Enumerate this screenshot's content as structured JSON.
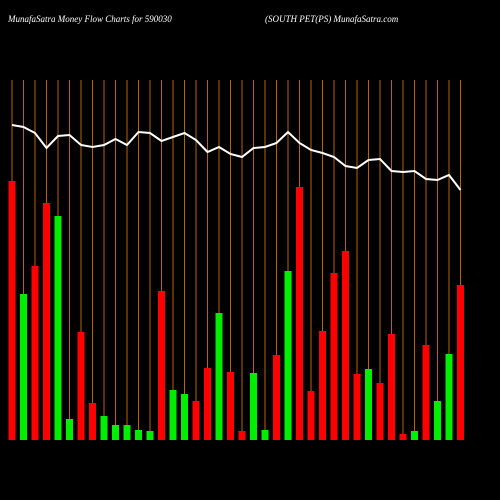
{
  "chart_data": {
    "type": "bar",
    "title": "MunafaSatra  Money Flow  Charts for 590030",
    "subtitle": "(SOUTH PET(PS) MunafaSatra.com",
    "categories": [
      null,
      null,
      null,
      null,
      null,
      null,
      null,
      null,
      null,
      null,
      null,
      null,
      null,
      null,
      null,
      null,
      null,
      null,
      null,
      null,
      null,
      null,
      null,
      null,
      null,
      null,
      null,
      null,
      null,
      null,
      null,
      null,
      null,
      null,
      null,
      null,
      null,
      null,
      null,
      null
    ],
    "values": [
      259,
      146,
      174,
      237,
      224,
      21,
      108,
      37,
      24,
      15,
      15,
      10,
      9,
      149,
      50,
      46,
      39,
      72,
      127,
      68,
      9,
      67,
      10,
      85,
      169,
      253,
      49,
      109,
      167,
      189,
      66,
      71,
      57,
      106,
      6,
      9,
      95,
      39,
      86,
      155
    ],
    "bar_colors": [
      "#ff0000",
      "#00ee00",
      "#ff0000",
      "#ff0000",
      "#00ee00",
      "#00ee00",
      "#ff0000",
      "#ff0000",
      "#00ee00",
      "#00ee00",
      "#00ee00",
      "#00ee00",
      "#00ee00",
      "#ff0000",
      "#00ee00",
      "#00ee00",
      "#ff0000",
      "#ff0000",
      "#00ee00",
      "#ff0000",
      "#ff0000",
      "#00ee00",
      "#00ee00",
      "#ff0000",
      "#00ee00",
      "#ff0000",
      "#ff0000",
      "#ff0000",
      "#ff0000",
      "#ff0000",
      "#ff0000",
      "#00ee00",
      "#ff0000",
      "#ff0000",
      "#ff0000",
      "#00ee00",
      "#ff0000",
      "#00ee00",
      "#00ee00",
      "#ff0000"
    ],
    "line": {
      "color": "#ffffff",
      "values": [
        315,
        313,
        307,
        292,
        304,
        305,
        295,
        293,
        295,
        301,
        295,
        308,
        307,
        299,
        303,
        307,
        300,
        288,
        293,
        286,
        283,
        292,
        293,
        297,
        308,
        297,
        290,
        287,
        283,
        274,
        272,
        280,
        281,
        269,
        268,
        269,
        261,
        260,
        265,
        250
      ]
    },
    "ylim": [
      0,
      440
    ],
    "grid": true,
    "grid_color": "#b8650a"
  }
}
